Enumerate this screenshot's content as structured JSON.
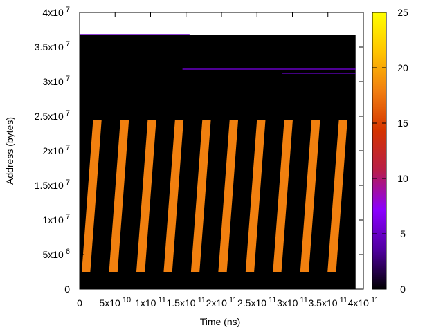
{
  "chart_data": {
    "type": "heatmap",
    "xlabel": "Time (ns)",
    "ylabel": "Address (bytes)",
    "xlim": [
      0,
      400000000000
    ],
    "ylim": [
      0,
      40000000
    ],
    "data_extent": {
      "x": [
        0,
        389000000000
      ],
      "y": [
        0,
        36800000
      ]
    },
    "x_ticks": [
      {
        "value": 0,
        "base": "0",
        "exp": ""
      },
      {
        "value": 50000000000,
        "base": "5x10",
        "exp": "10"
      },
      {
        "value": 100000000000,
        "base": "1x10",
        "exp": "11"
      },
      {
        "value": 150000000000,
        "base": "1.5x10",
        "exp": "11"
      },
      {
        "value": 200000000000,
        "base": "2x10",
        "exp": "11"
      },
      {
        "value": 250000000000,
        "base": "2.5x10",
        "exp": "11"
      },
      {
        "value": 300000000000,
        "base": "3x10",
        "exp": "11"
      },
      {
        "value": 350000000000,
        "base": "3.5x10",
        "exp": "11"
      },
      {
        "value": 400000000000,
        "base": "4x10",
        "exp": "11"
      }
    ],
    "y_ticks": [
      {
        "value": 0,
        "base": "0",
        "exp": ""
      },
      {
        "value": 5000000,
        "base": "5x10",
        "exp": "6"
      },
      {
        "value": 10000000,
        "base": "1x10",
        "exp": "7"
      },
      {
        "value": 15000000,
        "base": "1.5x10",
        "exp": "7"
      },
      {
        "value": 20000000,
        "base": "2x10",
        "exp": "7"
      },
      {
        "value": 25000000,
        "base": "2.5x10",
        "exp": "7"
      },
      {
        "value": 30000000,
        "base": "3x10",
        "exp": "7"
      },
      {
        "value": 35000000,
        "base": "3.5x10",
        "exp": "7"
      },
      {
        "value": 40000000,
        "base": "4x10",
        "exp": "7"
      }
    ],
    "colorbar": {
      "range": [
        0,
        25
      ],
      "ticks": [
        {
          "value": 0,
          "label": "0"
        },
        {
          "value": 5,
          "label": "5"
        },
        {
          "value": 10,
          "label": "10"
        },
        {
          "value": 15,
          "label": "15"
        },
        {
          "value": 20,
          "label": "20"
        },
        {
          "value": 25,
          "label": "25"
        }
      ],
      "palette": [
        "#000000",
        "#5000a0",
        "#8b00ff",
        "#b81e4a",
        "#d43300",
        "#f07d10",
        "#ffc400",
        "#ffff00"
      ]
    },
    "background_color": "#000000",
    "band_value": 18,
    "band_y_range": [
      2500000,
      24500000
    ],
    "band_x_starts": [
      -19500000000,
      19000000000,
      57500000000,
      96000000000,
      134500000000,
      173000000000,
      211500000000,
      250000000000,
      288500000000,
      327000000000,
      365500000000
    ],
    "band_top_width": 12000000000,
    "band_bottom_offset": -16000000000,
    "faint_lines": [
      {
        "y": 36800000,
        "x": [
          0,
          155000000000
        ],
        "value": 5
      },
      {
        "y": 31800000,
        "x": [
          145000000000,
          389000000000
        ],
        "value": 5
      },
      {
        "y": 31200000,
        "x": [
          285000000000,
          389000000000
        ],
        "value": 4
      }
    ]
  }
}
